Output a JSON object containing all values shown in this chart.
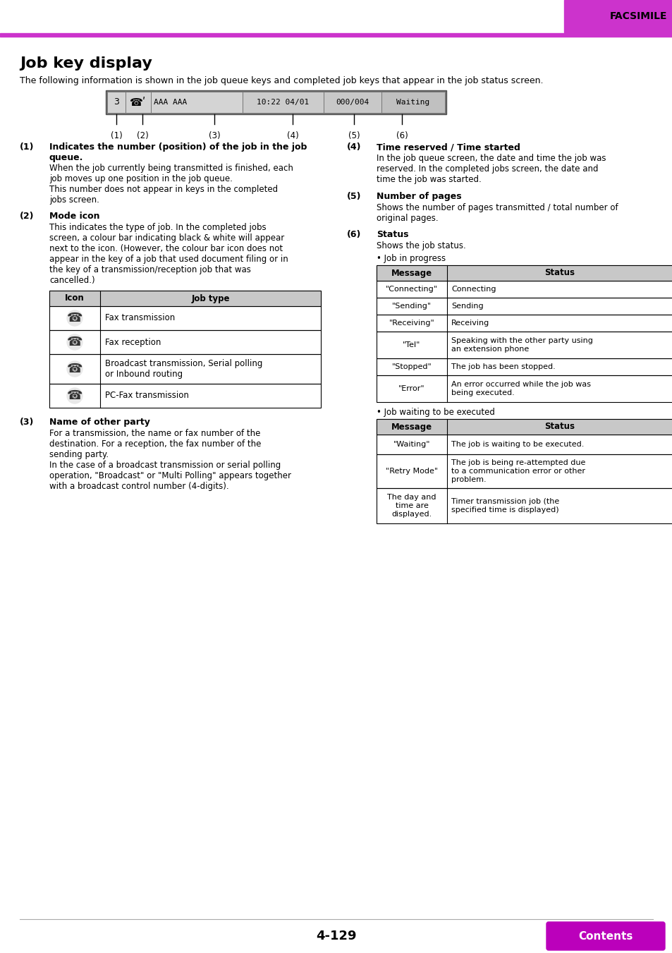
{
  "page_bg": "#ffffff",
  "header_bar_color": "#cc33cc",
  "header_text": "FACSIMILE",
  "title": "Job key display",
  "subtitle": "The following information is shown in the job queue keys and completed job keys that appear in the job status screen.",
  "footer_page": "4-129",
  "footer_button": "Contents",
  "footer_button_color": "#bb00bb",
  "table_header_bg": "#c8c8c8",
  "text_color": "#000000",
  "seg_texts": [
    "3",
    "☎ʹ",
    "AAA AAA",
    "10:22 04/01",
    "000/004",
    "Waiting"
  ],
  "seg_colors": [
    "#d4d4d4",
    "#d4d4d4",
    "#d4d4d4",
    "#cccccc",
    "#c8c8c8",
    "#c0c0c0"
  ],
  "seg_widths": [
    26,
    36,
    130,
    115,
    82,
    90
  ],
  "callout_x_offsets": [
    13,
    50,
    152,
    263,
    350,
    418
  ],
  "callout_labels": [
    "(1)",
    "(2)",
    "(3)",
    "(4)",
    "(5)",
    "(6)"
  ],
  "prog_rows": [
    [
      "\"Connecting\"",
      "Connecting",
      24
    ],
    [
      "\"Sending\"",
      "Sending",
      24
    ],
    [
      "\"Receiving\"",
      "Receiving",
      24
    ],
    [
      "\"Tel\"",
      "Speaking with the other party using\nan extension phone",
      38
    ],
    [
      "\"Stopped\"",
      "The job has been stopped.",
      24
    ],
    [
      "\"Error\"",
      "An error occurred while the job was\nbeing executed.",
      38
    ]
  ],
  "wait_rows": [
    [
      "\"Waiting\"",
      "The job is waiting to be executed.",
      28
    ],
    [
      "\"Retry Mode\"",
      "The job is being re-attempted due\nto a communication error or other\nproblem.",
      48
    ],
    [
      "The day and\ntime are\ndisplayed.",
      "Timer transmission job (the\nspecified time is displayed)",
      50
    ]
  ]
}
